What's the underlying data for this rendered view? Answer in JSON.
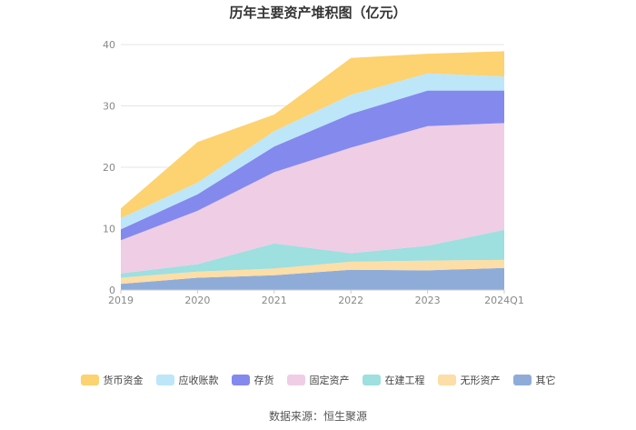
{
  "chart_data": {
    "type": "area",
    "stacked": true,
    "title": "历年主要资产堆积图（亿元）",
    "xlabel": "",
    "ylabel": "",
    "categories": [
      "2019",
      "2020",
      "2021",
      "2022",
      "2023",
      "2024Q1"
    ],
    "yticks": [
      "0",
      "10",
      "20",
      "30",
      "40"
    ],
    "ylim": [
      0,
      40
    ],
    "grid": true,
    "legend_position": "bottom",
    "series": [
      {
        "name": "其它",
        "color": "#8FACD9",
        "values": [
          1.0,
          2.0,
          2.4,
          3.3,
          3.2,
          3.6
        ]
      },
      {
        "name": "无形资产",
        "color": "#FDDEA6",
        "values": [
          1.0,
          1.0,
          1.1,
          1.3,
          1.6,
          1.3
        ]
      },
      {
        "name": "在建工程",
        "color": "#9EDFDF",
        "values": [
          0.7,
          1.2,
          4.1,
          1.4,
          2.4,
          4.9
        ]
      },
      {
        "name": "固定资产",
        "color": "#EFCDE5",
        "values": [
          5.4,
          8.7,
          11.6,
          17.2,
          19.5,
          17.4
        ]
      },
      {
        "name": "存货",
        "color": "#8489EE",
        "values": [
          1.8,
          2.7,
          4.2,
          5.5,
          5.8,
          5.3
        ]
      },
      {
        "name": "应收账款",
        "color": "#BDE6F9",
        "values": [
          1.8,
          1.9,
          2.5,
          3.1,
          2.8,
          2.3
        ]
      },
      {
        "name": "货币资金",
        "color": "#FDD270",
        "values": [
          1.6,
          6.6,
          2.7,
          6.0,
          3.2,
          4.1
        ]
      }
    ]
  },
  "legend_order": [
    "货币资金",
    "应收账款",
    "存货",
    "固定资产",
    "在建工程",
    "无形资产",
    "其它"
  ],
  "source": "数据来源：恒生聚源"
}
